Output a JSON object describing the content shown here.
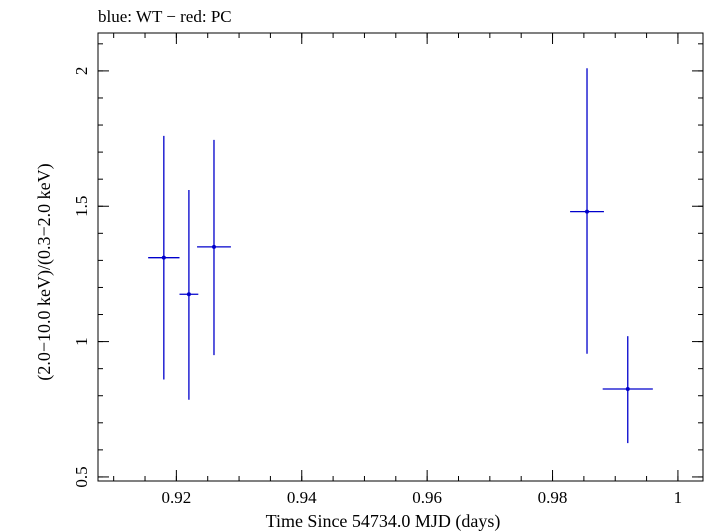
{
  "chart_data": {
    "type": "scatter",
    "title": "blue: WT − red: PC",
    "xlabel": "Time Since 54734.0 MJD (days)",
    "ylabel": "(2.0−10.0 keV)/(0.3−2.0 keV)",
    "xlim": [
      0.9075,
      1.004
    ],
    "ylim": [
      0.485,
      2.14
    ],
    "x_ticks": [
      {
        "value": 0.92,
        "label": "0.92"
      },
      {
        "value": 0.94,
        "label": "0.94"
      },
      {
        "value": 0.96,
        "label": "0.96"
      },
      {
        "value": 0.98,
        "label": "0.98"
      },
      {
        "value": 1.0,
        "label": "1"
      }
    ],
    "y_ticks": [
      {
        "value": 0.5,
        "label": "0.5"
      },
      {
        "value": 1.0,
        "label": "1"
      },
      {
        "value": 1.5,
        "label": "1.5"
      },
      {
        "value": 2.0,
        "label": "2"
      }
    ],
    "series": [
      {
        "name": "WT",
        "color": "#0000cc",
        "points": [
          {
            "x": 0.918,
            "y": 1.31,
            "xerr": 0.0025,
            "ylo": 0.86,
            "yhi": 1.76
          },
          {
            "x": 0.922,
            "y": 1.175,
            "xerr": 0.0015,
            "ylo": 0.785,
            "yhi": 1.56
          },
          {
            "x": 0.926,
            "y": 1.35,
            "xerr": 0.0027,
            "ylo": 0.95,
            "yhi": 1.745
          },
          {
            "x": 0.9855,
            "y": 1.48,
            "xerr": 0.0027,
            "ylo": 0.955,
            "yhi": 2.01
          },
          {
            "x": 0.992,
            "y": 0.825,
            "xerr": 0.004,
            "ylo": 0.625,
            "yhi": 1.02
          }
        ]
      }
    ]
  }
}
